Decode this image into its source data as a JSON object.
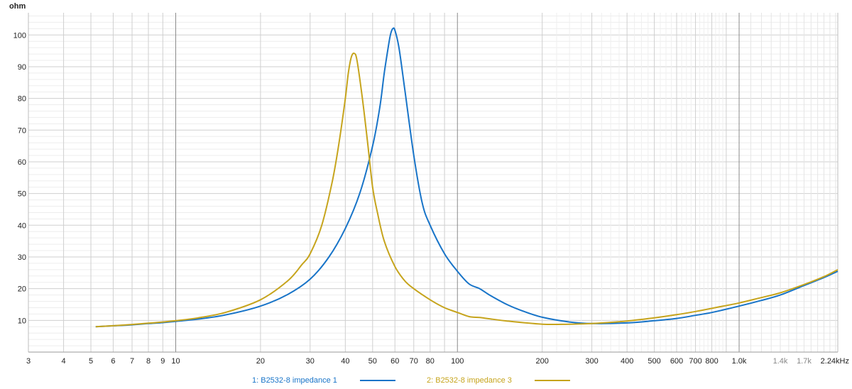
{
  "chart_data": {
    "type": "line",
    "title": "",
    "ylabel": "ohm",
    "xlabel": "",
    "x_scale": "log",
    "xlim": [
      3,
      2240
    ],
    "ylim": [
      0,
      107
    ],
    "grid": true,
    "legend_position": "bottom-center",
    "y_ticks": [
      10,
      20,
      30,
      40,
      50,
      60,
      70,
      80,
      90,
      100
    ],
    "x_ticks": [
      {
        "value": 3,
        "label": "3"
      },
      {
        "value": 4,
        "label": "4"
      },
      {
        "value": 5,
        "label": "5"
      },
      {
        "value": 6,
        "label": "6"
      },
      {
        "value": 7,
        "label": "7"
      },
      {
        "value": 8,
        "label": "8"
      },
      {
        "value": 9,
        "label": "9"
      },
      {
        "value": 10,
        "label": "10"
      },
      {
        "value": 20,
        "label": "20"
      },
      {
        "value": 30,
        "label": "30"
      },
      {
        "value": 40,
        "label": "40"
      },
      {
        "value": 50,
        "label": "50"
      },
      {
        "value": 60,
        "label": "60"
      },
      {
        "value": 70,
        "label": "70"
      },
      {
        "value": 80,
        "label": "80"
      },
      {
        "value": 100,
        "label": "100"
      },
      {
        "value": 200,
        "label": "200"
      },
      {
        "value": 300,
        "label": "300"
      },
      {
        "value": 400,
        "label": "400"
      },
      {
        "value": 500,
        "label": "500"
      },
      {
        "value": 600,
        "label": "600"
      },
      {
        "value": 700,
        "label": "700"
      },
      {
        "value": 800,
        "label": "800"
      },
      {
        "value": 1000,
        "label": "1.0k"
      },
      {
        "value": 1400,
        "label": "1.4k",
        "minor": true
      },
      {
        "value": 1700,
        "label": "1.7k",
        "minor": true
      },
      {
        "value": 2240,
        "label": "2.24kHz"
      }
    ],
    "decade_lines": [
      10,
      100,
      1000
    ],
    "series": [
      {
        "name": "1: B2532-8 impedance 1",
        "color": "#1874c8",
        "points": [
          [
            5.2,
            8.0
          ],
          [
            6,
            8.3
          ],
          [
            7,
            8.6
          ],
          [
            8,
            9.0
          ],
          [
            9,
            9.3
          ],
          [
            10,
            9.7
          ],
          [
            12,
            10.4
          ],
          [
            15,
            11.7
          ],
          [
            20,
            14.5
          ],
          [
            25,
            18.2
          ],
          [
            30,
            23.0
          ],
          [
            35,
            30.0
          ],
          [
            40,
            39.0
          ],
          [
            45,
            50.0
          ],
          [
            50,
            65.0
          ],
          [
            53,
            77.0
          ],
          [
            55,
            88.0
          ],
          [
            57,
            97.0
          ],
          [
            58,
            100.5
          ],
          [
            59,
            102.0
          ],
          [
            60,
            101.5
          ],
          [
            62,
            96.0
          ],
          [
            65,
            83.0
          ],
          [
            70,
            62.0
          ],
          [
            75,
            47.0
          ],
          [
            80,
            40.0
          ],
          [
            90,
            31.0
          ],
          [
            100,
            25.5
          ],
          [
            110,
            21.5
          ],
          [
            120,
            20.0
          ],
          [
            130,
            18.0
          ],
          [
            150,
            15.0
          ],
          [
            170,
            13.0
          ],
          [
            200,
            11.0
          ],
          [
            250,
            9.5
          ],
          [
            300,
            9.0
          ],
          [
            400,
            9.2
          ],
          [
            500,
            9.9
          ],
          [
            600,
            10.6
          ],
          [
            700,
            11.6
          ],
          [
            800,
            12.5
          ],
          [
            1000,
            14.5
          ],
          [
            1200,
            16.3
          ],
          [
            1400,
            18.0
          ],
          [
            1700,
            21.0
          ],
          [
            2000,
            23.5
          ],
          [
            2240,
            25.5
          ]
        ]
      },
      {
        "name": "2: B2532-8 impedance 3",
        "color": "#c6a41c",
        "points": [
          [
            5.2,
            8.0
          ],
          [
            6,
            8.3
          ],
          [
            7,
            8.7
          ],
          [
            8,
            9.1
          ],
          [
            9,
            9.5
          ],
          [
            10,
            9.9
          ],
          [
            12,
            10.8
          ],
          [
            15,
            12.5
          ],
          [
            20,
            16.5
          ],
          [
            25,
            22.5
          ],
          [
            28,
            27.5
          ],
          [
            30,
            31.0
          ],
          [
            33,
            40.0
          ],
          [
            36,
            54.0
          ],
          [
            38,
            66.0
          ],
          [
            40,
            80.0
          ],
          [
            41,
            88.0
          ],
          [
            42,
            93.0
          ],
          [
            43,
            94.2
          ],
          [
            44,
            92.0
          ],
          [
            46,
            80.0
          ],
          [
            48,
            66.0
          ],
          [
            50,
            52.0
          ],
          [
            52,
            44.0
          ],
          [
            55,
            35.0
          ],
          [
            60,
            27.0
          ],
          [
            65,
            22.5
          ],
          [
            70,
            20.0
          ],
          [
            80,
            16.5
          ],
          [
            90,
            14.0
          ],
          [
            100,
            12.5
          ],
          [
            110,
            11.2
          ],
          [
            120,
            10.9
          ],
          [
            130,
            10.5
          ],
          [
            150,
            9.8
          ],
          [
            200,
            8.8
          ],
          [
            250,
            8.8
          ],
          [
            300,
            9.0
          ],
          [
            400,
            9.8
          ],
          [
            500,
            10.8
          ],
          [
            600,
            11.8
          ],
          [
            700,
            12.8
          ],
          [
            800,
            13.8
          ],
          [
            1000,
            15.5
          ],
          [
            1200,
            17.2
          ],
          [
            1400,
            18.7
          ],
          [
            1700,
            21.3
          ],
          [
            2000,
            23.8
          ],
          [
            2240,
            26.0
          ]
        ]
      }
    ]
  }
}
